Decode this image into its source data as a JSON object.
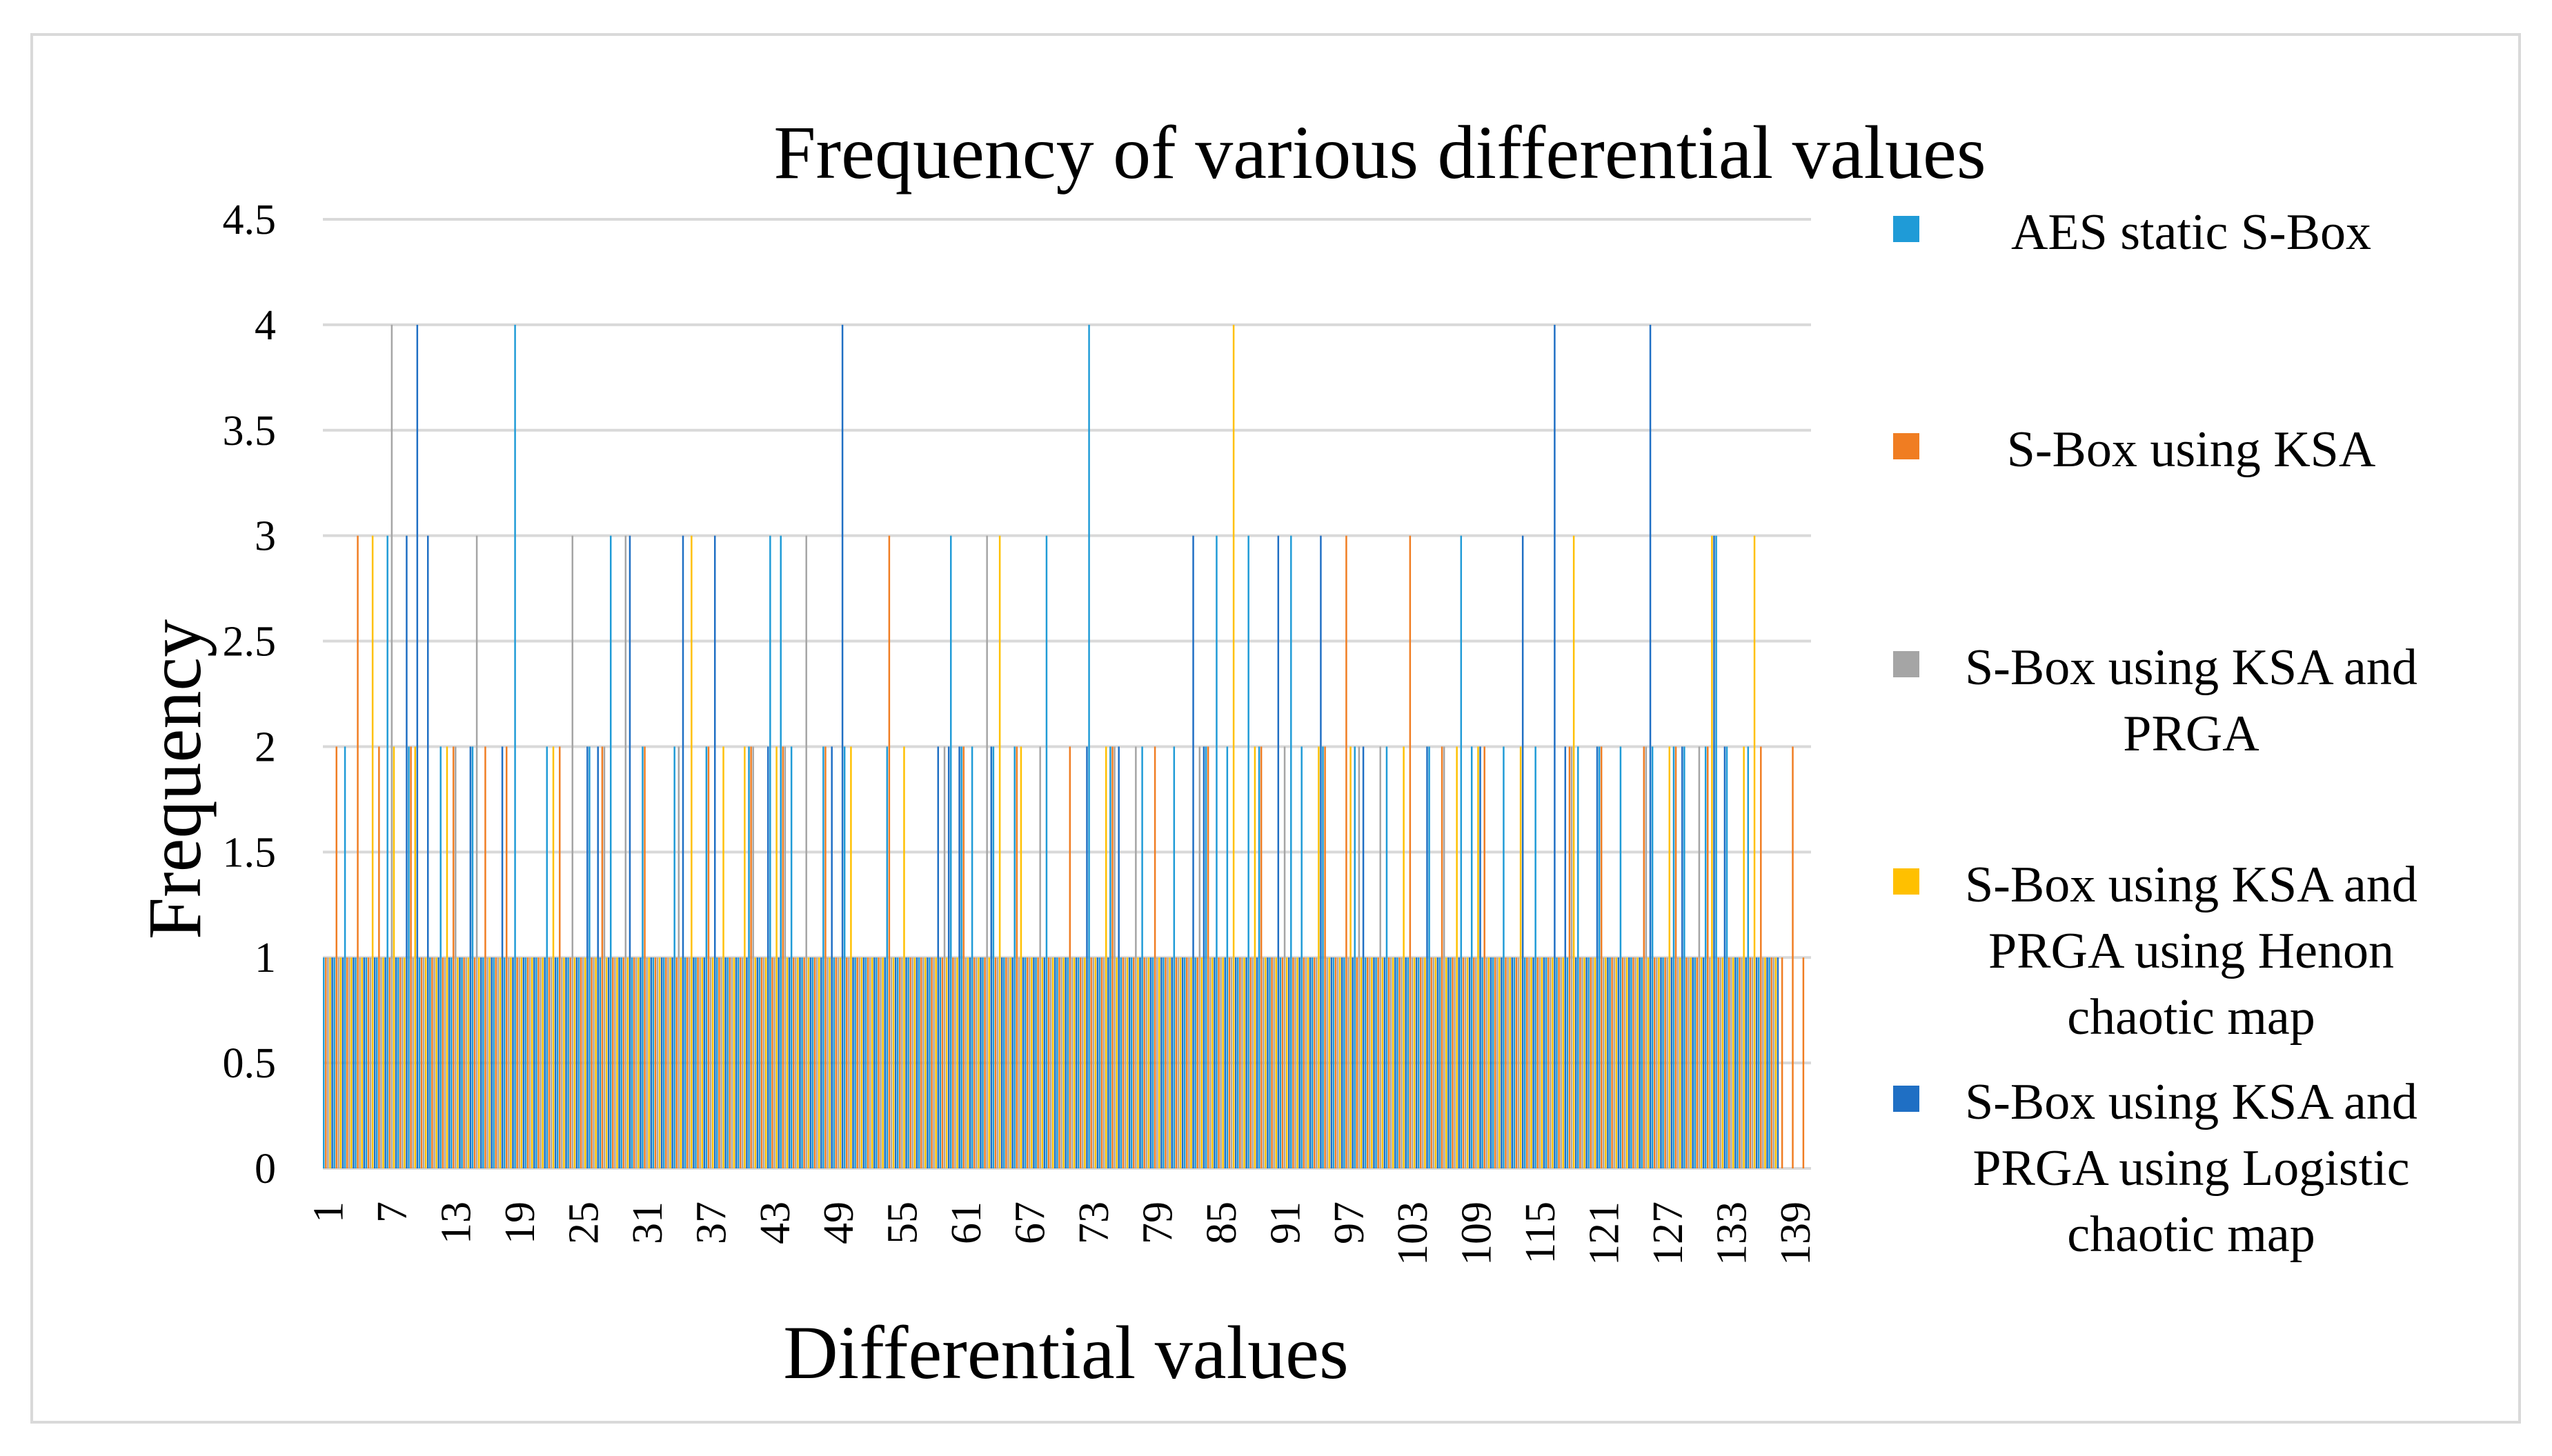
{
  "chart_data": {
    "type": "bar",
    "title": "Frequency of various differential values",
    "xlabel": "Differential values",
    "ylabel": "Frequency",
    "ylim": [
      0,
      4.5
    ],
    "yticks": [
      "0",
      "0.5",
      "1",
      "1.5",
      "2",
      "2.5",
      "3",
      "3.5",
      "4",
      "4.5"
    ],
    "x_tick_labels": [
      "1",
      "7",
      "13",
      "19",
      "25",
      "31",
      "37",
      "43",
      "49",
      "55",
      "61",
      "67",
      "73",
      "79",
      "85",
      "91",
      "97",
      "103",
      "109",
      "115",
      "121",
      "127",
      "133",
      "139"
    ],
    "categories_count": 140,
    "grid": true,
    "legend_position": "right",
    "series": [
      {
        "name": "AES static S-Box",
        "color": "#1f9bd7",
        "values": [
          1,
          1,
          2,
          1,
          1,
          1,
          3,
          1,
          2,
          1,
          1,
          2,
          1,
          1,
          2,
          1,
          1,
          1,
          4,
          1,
          1,
          2,
          1,
          1,
          1,
          2,
          1,
          3,
          1,
          1,
          2,
          1,
          1,
          2,
          1,
          1,
          2,
          1,
          1,
          1,
          2,
          1,
          3,
          3,
          2,
          1,
          1,
          2,
          1,
          2,
          1,
          1,
          1,
          2,
          1,
          1,
          1,
          1,
          1,
          3,
          2,
          2,
          1,
          2,
          1,
          2,
          1,
          1,
          3,
          1,
          1,
          1,
          4,
          1,
          2,
          1,
          1,
          2,
          1,
          1,
          2,
          1,
          1,
          2,
          3,
          2,
          1,
          3,
          2,
          1,
          1,
          3,
          2,
          1,
          2,
          1,
          1,
          2,
          1,
          1,
          2,
          1,
          1,
          1,
          2,
          1,
          1,
          3,
          2,
          1,
          1,
          2,
          1,
          1,
          2,
          1,
          1,
          1,
          2,
          1,
          2,
          1,
          2,
          1,
          1,
          2,
          1,
          2,
          2,
          1,
          2,
          3,
          2,
          1,
          2,
          1,
          1,
          0,
          0,
          0
        ]
      },
      {
        "name": "S-Box using KSA",
        "color": "#f07d22",
        "values": [
          1,
          2,
          1,
          3,
          1,
          2,
          1,
          1,
          2,
          1,
          1,
          1,
          2,
          1,
          1,
          2,
          1,
          2,
          1,
          1,
          1,
          1,
          2,
          1,
          1,
          1,
          2,
          1,
          1,
          1,
          2,
          1,
          1,
          1,
          1,
          1,
          2,
          1,
          1,
          1,
          2,
          1,
          1,
          2,
          1,
          1,
          1,
          2,
          1,
          1,
          1,
          1,
          1,
          3,
          1,
          1,
          1,
          1,
          1,
          1,
          2,
          1,
          1,
          1,
          1,
          2,
          1,
          1,
          1,
          1,
          2,
          1,
          1,
          1,
          2,
          1,
          1,
          1,
          2,
          1,
          1,
          1,
          1,
          2,
          1,
          1,
          1,
          1,
          2,
          1,
          1,
          1,
          1,
          1,
          2,
          1,
          3,
          1,
          1,
          1,
          1,
          1,
          3,
          1,
          1,
          2,
          1,
          1,
          1,
          2,
          1,
          1,
          1,
          1,
          1,
          1,
          1,
          2,
          1,
          1,
          2,
          1,
          1,
          1,
          2,
          1,
          1,
          2,
          1,
          1,
          2,
          1,
          1,
          1,
          1,
          2,
          1,
          1,
          2,
          1
        ]
      },
      {
        "name": "S-Box using KSA and PRGA",
        "color": "#a5a5a5",
        "values": [
          1,
          1,
          1,
          1,
          1,
          1,
          4,
          1,
          1,
          1,
          1,
          1,
          2,
          1,
          3,
          1,
          1,
          1,
          1,
          1,
          1,
          1,
          1,
          3,
          1,
          1,
          2,
          1,
          3,
          1,
          1,
          1,
          1,
          2,
          1,
          1,
          1,
          1,
          1,
          1,
          2,
          1,
          1,
          2,
          1,
          3,
          1,
          1,
          1,
          1,
          1,
          1,
          1,
          1,
          1,
          1,
          1,
          1,
          2,
          1,
          1,
          1,
          3,
          1,
          1,
          1,
          1,
          2,
          1,
          1,
          1,
          1,
          1,
          1,
          2,
          1,
          2,
          1,
          1,
          1,
          1,
          1,
          2,
          1,
          1,
          1,
          1,
          1,
          1,
          1,
          2,
          1,
          1,
          1,
          1,
          1,
          1,
          2,
          1,
          2,
          1,
          1,
          1,
          1,
          1,
          2,
          1,
          1,
          1,
          1,
          1,
          1,
          1,
          1,
          1,
          1,
          1,
          2,
          1,
          1,
          1,
          1,
          1,
          1,
          2,
          1,
          1,
          1,
          1,
          2,
          1,
          1,
          1,
          1,
          1,
          1,
          1,
          0,
          0,
          0
        ]
      },
      {
        "name": "S-Box using KSA and PRGA using Henon chaotic map",
        "color": "#ffc000",
        "values": [
          1,
          1,
          1,
          1,
          3,
          1,
          2,
          1,
          2,
          1,
          1,
          2,
          1,
          1,
          1,
          1,
          1,
          1,
          1,
          1,
          1,
          2,
          1,
          1,
          1,
          1,
          1,
          1,
          1,
          1,
          1,
          1,
          1,
          1,
          3,
          1,
          1,
          2,
          1,
          2,
          1,
          1,
          2,
          1,
          1,
          1,
          1,
          1,
          1,
          2,
          1,
          1,
          1,
          1,
          2,
          1,
          1,
          1,
          1,
          1,
          1,
          1,
          1,
          3,
          1,
          2,
          1,
          1,
          1,
          1,
          1,
          1,
          1,
          2,
          1,
          1,
          1,
          1,
          1,
          1,
          1,
          1,
          1,
          1,
          1,
          4,
          1,
          2,
          1,
          1,
          1,
          1,
          1,
          2,
          1,
          1,
          2,
          1,
          1,
          1,
          1,
          2,
          1,
          1,
          1,
          1,
          2,
          1,
          2,
          1,
          1,
          1,
          2,
          1,
          1,
          1,
          1,
          3,
          1,
          1,
          1,
          1,
          1,
          1,
          1,
          1,
          2,
          1,
          1,
          1,
          3,
          1,
          1,
          2,
          3,
          1,
          1,
          0,
          0,
          0
        ]
      },
      {
        "name": "S-Box using KSA and PRGA using Logistic chaotic map",
        "color": "#1f6fc4",
        "values": [
          1,
          1,
          1,
          1,
          1,
          1,
          1,
          3,
          4,
          3,
          1,
          1,
          1,
          2,
          1,
          1,
          2,
          1,
          1,
          1,
          1,
          1,
          1,
          1,
          2,
          2,
          1,
          1,
          3,
          1,
          1,
          1,
          1,
          3,
          1,
          1,
          3,
          1,
          1,
          1,
          1,
          2,
          1,
          1,
          1,
          1,
          1,
          2,
          4,
          1,
          1,
          1,
          1,
          1,
          1,
          1,
          1,
          2,
          2,
          2,
          1,
          1,
          2,
          1,
          1,
          1,
          1,
          1,
          1,
          1,
          1,
          2,
          1,
          1,
          2,
          1,
          1,
          1,
          1,
          1,
          1,
          3,
          2,
          1,
          1,
          1,
          1,
          1,
          1,
          3,
          1,
          1,
          1,
          3,
          1,
          1,
          1,
          2,
          1,
          1,
          1,
          1,
          1,
          2,
          1,
          1,
          1,
          1,
          2,
          1,
          1,
          1,
          3,
          1,
          1,
          4,
          2,
          1,
          1,
          2,
          1,
          1,
          1,
          1,
          4,
          1,
          1,
          2,
          1,
          1,
          3,
          2,
          1,
          1,
          1,
          1,
          1,
          0,
          0,
          0
        ]
      }
    ]
  }
}
